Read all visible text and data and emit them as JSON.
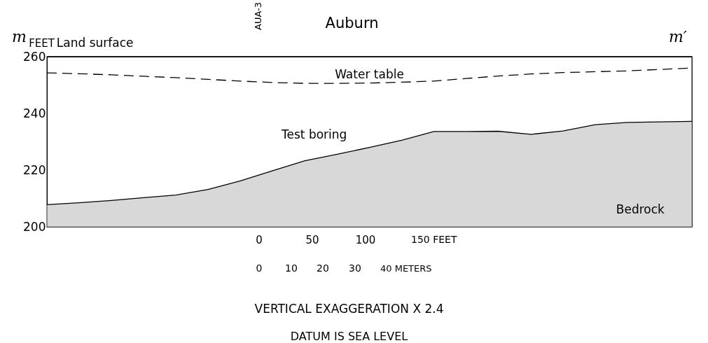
{
  "chart_data": {
    "type": "line",
    "title": "Auburn",
    "ylabel": "FEET",
    "categories": [
      null,
      null,
      null,
      null,
      null,
      null,
      null,
      null,
      null,
      null,
      null,
      null,
      null,
      null,
      null,
      null,
      null,
      null,
      null,
      null,
      null
    ],
    "series": [
      {
        "name": "Land surface",
        "color": "#000000",
        "line_style": "solid",
        "values": [
          260,
          260,
          260,
          260,
          260,
          260,
          260,
          260,
          260,
          260,
          260,
          260,
          260,
          260,
          260,
          260,
          260,
          260,
          260,
          260,
          260
        ]
      },
      {
        "name": "Water table",
        "color": "#000000",
        "line_style": "dashed",
        "values": [
          254.3,
          254,
          253.6,
          253.1,
          252.6,
          252,
          251.4,
          250.9,
          250.6,
          250.6,
          250.7,
          251,
          251.4,
          252.3,
          253.2,
          253.9,
          254.4,
          254.7,
          255,
          255.5,
          256
        ]
      },
      {
        "name": "Bedrock",
        "type": "area",
        "color": "#c8c8c8",
        "values": [
          207.8,
          208.5,
          209.3,
          210.3,
          211.2,
          213.2,
          216.2,
          219.8,
          223.3,
          225.6,
          228,
          230.5,
          233.6,
          233.6,
          233.7,
          232.6,
          233.8,
          236,
          236.8,
          237,
          237.2
        ]
      }
    ],
    "ylim": [
      200,
      260
    ],
    "yticks": [
      200,
      220,
      240,
      260
    ],
    "grid": false,
    "marker": "none",
    "annotations": [
      "m",
      "m′",
      "AUA-3",
      "Test boring",
      "0",
      "50",
      "100",
      "150 FEET",
      "0",
      "10",
      "20",
      "30",
      "40 METERS",
      "VERTICAL EXAGGERATION X 2.4",
      "DATUM IS SEA LEVEL"
    ]
  }
}
